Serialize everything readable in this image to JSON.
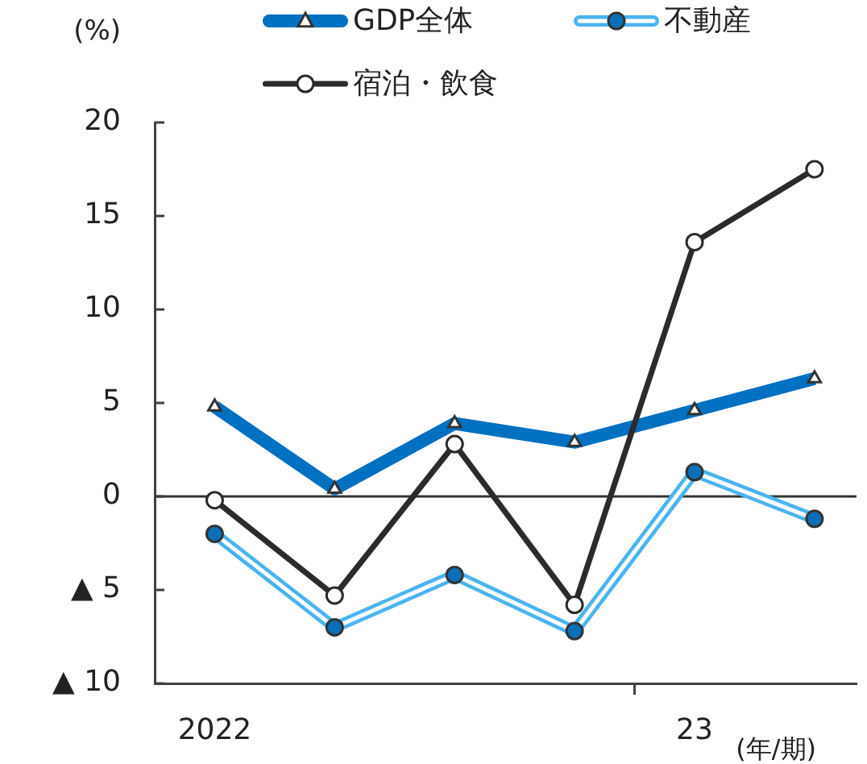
{
  "chart_data": {
    "type": "line",
    "ylabel": "(%)",
    "xlabel": "(年/期)",
    "categories": [
      "2022",
      null,
      null,
      null,
      "23",
      null
    ],
    "series": [
      {
        "name": "GDP全体",
        "color": "#0070c0",
        "values": [
          4.8,
          0.4,
          3.9,
          2.9,
          4.6,
          6.3
        ],
        "marker": "triangle"
      },
      {
        "name": "不動産",
        "color": "#4ab4f0",
        "values": [
          -2.0,
          -7.0,
          -4.2,
          -7.2,
          1.3,
          -1.2
        ],
        "marker": "circle"
      },
      {
        "name": "宿泊・飲食",
        "color": "#2b2b2b",
        "values": [
          -0.2,
          -5.3,
          2.8,
          -5.8,
          13.6,
          17.5
        ],
        "marker": "circle"
      }
    ],
    "ylim": [
      -10,
      20
    ],
    "yticks": [
      {
        "value": -10,
        "label": "▲ 10"
      },
      {
        "value": -5,
        "label": "▲ 5"
      },
      0,
      5,
      10,
      15,
      20
    ],
    "ref_lines": [
      {
        "axis": "y",
        "value": 0,
        "color": "#333333"
      }
    ],
    "legend": "top"
  }
}
